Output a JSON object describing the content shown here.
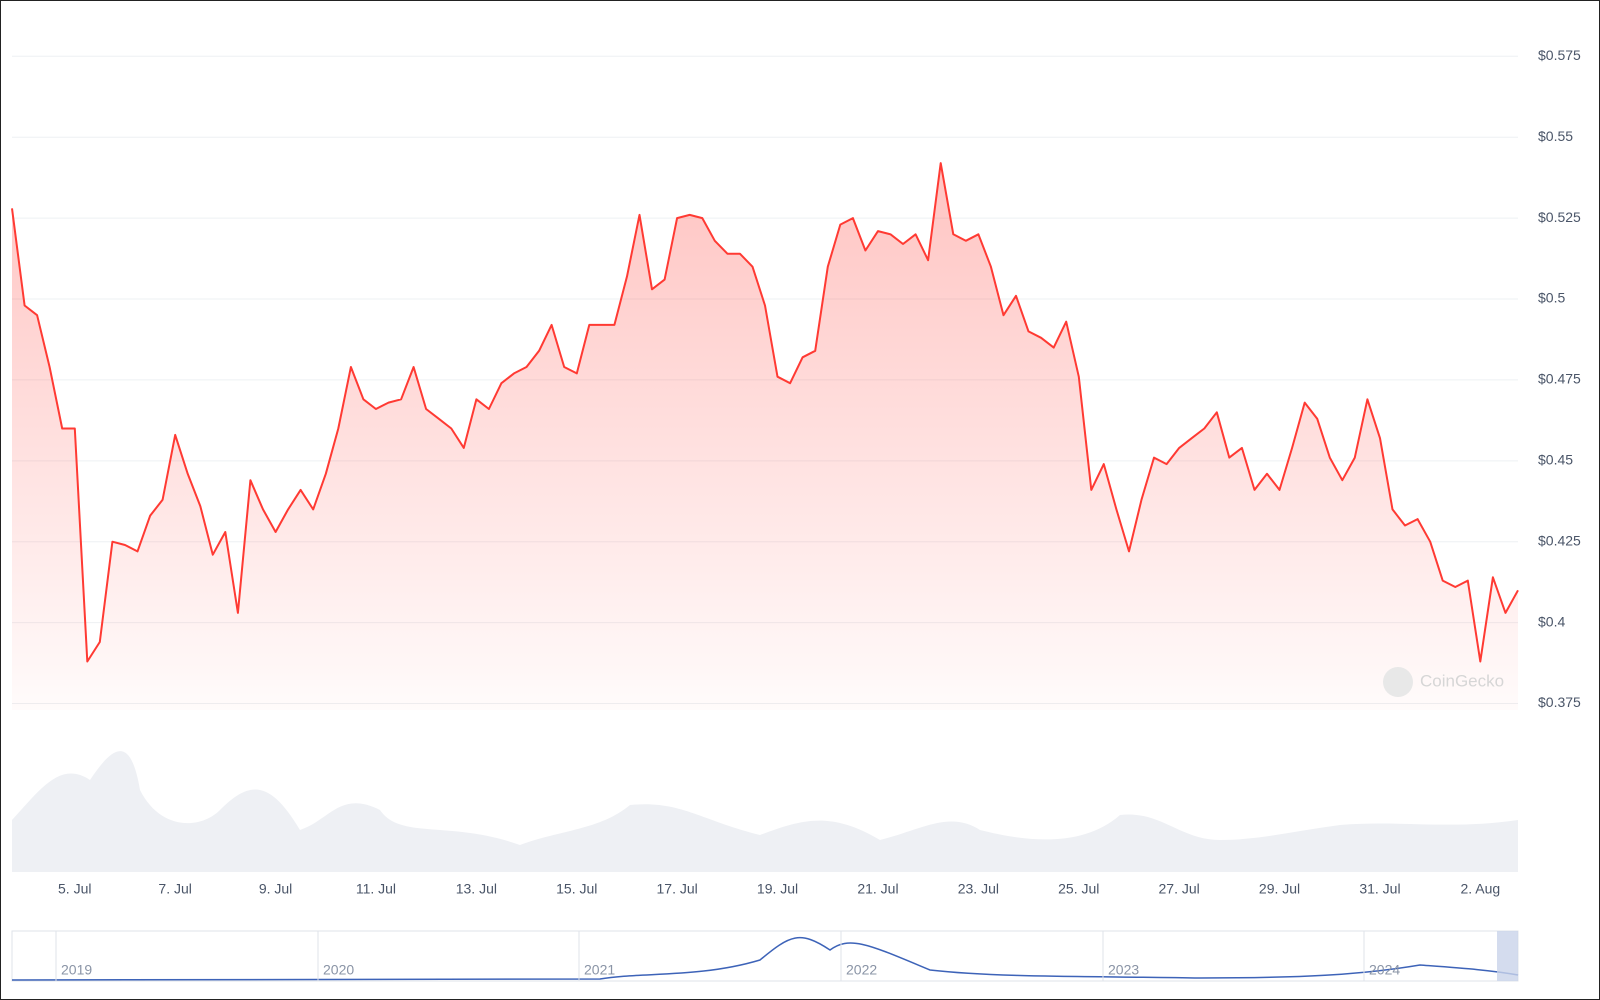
{
  "chart_data": {
    "type": "line",
    "categories": [
      null,
      null,
      null,
      null,
      null,
      "5. Jul",
      null,
      null,
      null,
      null,
      null,
      null,
      null,
      "7. Jul",
      null,
      null,
      null,
      null,
      null,
      null,
      null,
      "9. Jul",
      null,
      null,
      null,
      null,
      null,
      null,
      null,
      "11. Jul",
      null,
      null,
      null,
      null,
      null,
      null,
      null,
      "13. Jul",
      null,
      null,
      null,
      null,
      null,
      null,
      null,
      "15. Jul",
      null,
      null,
      null,
      null,
      null,
      null,
      null,
      "17. Jul",
      null,
      null,
      null,
      null,
      null,
      null,
      null,
      "19. Jul",
      null,
      null,
      null,
      null,
      null,
      null,
      null,
      "21. Jul",
      null,
      null,
      null,
      null,
      null,
      null,
      null,
      "23. Jul",
      null,
      null,
      null,
      null,
      null,
      null,
      null,
      "25. Jul",
      null,
      null,
      null,
      null,
      null,
      null,
      null,
      "27. Jul",
      null,
      null,
      null,
      null,
      null,
      null,
      null,
      "29. Jul",
      null,
      null,
      null,
      null,
      null,
      null,
      null,
      "31. Jul",
      null,
      null,
      null,
      null,
      null,
      null,
      null,
      "2. Aug",
      null,
      null,
      null
    ],
    "values": [
      0.528,
      0.498,
      0.495,
      0.479,
      0.46,
      0.46,
      0.388,
      0.394,
      0.425,
      0.424,
      0.422,
      0.433,
      0.438,
      0.458,
      0.446,
      0.436,
      0.421,
      0.428,
      0.403,
      0.444,
      0.435,
      0.428,
      0.435,
      0.441,
      0.435,
      0.446,
      0.46,
      0.479,
      0.469,
      0.466,
      0.468,
      0.469,
      0.479,
      0.466,
      0.463,
      0.46,
      0.454,
      0.469,
      0.466,
      0.474,
      0.477,
      0.479,
      0.484,
      0.492,
      0.479,
      0.477,
      0.492,
      0.492,
      0.492,
      0.507,
      0.526,
      0.503,
      0.506,
      0.525,
      0.526,
      0.525,
      0.518,
      0.514,
      0.514,
      0.51,
      0.498,
      0.476,
      0.474,
      0.482,
      0.484,
      0.51,
      0.523,
      0.525,
      0.515,
      0.521,
      0.52,
      0.517,
      0.52,
      0.512,
      0.542,
      0.52,
      0.518,
      0.52,
      0.51,
      0.495,
      0.501,
      0.49,
      0.488,
      0.485,
      0.493,
      0.476,
      0.441,
      0.449,
      0.435,
      0.422,
      0.438,
      0.451,
      0.449,
      0.454,
      0.457,
      0.46,
      0.465,
      0.451,
      0.454,
      0.441,
      0.446,
      0.441,
      0.454,
      0.468,
      0.463,
      0.451,
      0.444,
      0.451,
      0.469,
      0.457,
      0.435,
      0.43,
      0.432,
      0.425,
      0.413,
      0.411,
      0.413,
      0.388,
      0.414,
      0.403,
      0.41
    ],
    "color": "#ff3a33",
    "ylim": [
      0.373,
      0.589
    ],
    "yticks": [
      {
        "value": 0.375,
        "label": "$0.375"
      },
      {
        "value": 0.4,
        "label": "$0.4"
      },
      {
        "value": 0.425,
        "label": "$0.425"
      },
      {
        "value": 0.45,
        "label": "$0.45"
      },
      {
        "value": 0.475,
        "label": "$0.475"
      },
      {
        "value": 0.5,
        "label": "$0.5"
      },
      {
        "value": 0.525,
        "label": "$0.525"
      },
      {
        "value": 0.55,
        "label": "$0.55"
      },
      {
        "value": 0.575,
        "label": "$0.575"
      }
    ],
    "grid": true,
    "watermark": "CoinGecko",
    "navigator_labels": [
      "2019",
      "2020",
      "2021",
      "2022",
      "2023",
      "2024"
    ]
  }
}
